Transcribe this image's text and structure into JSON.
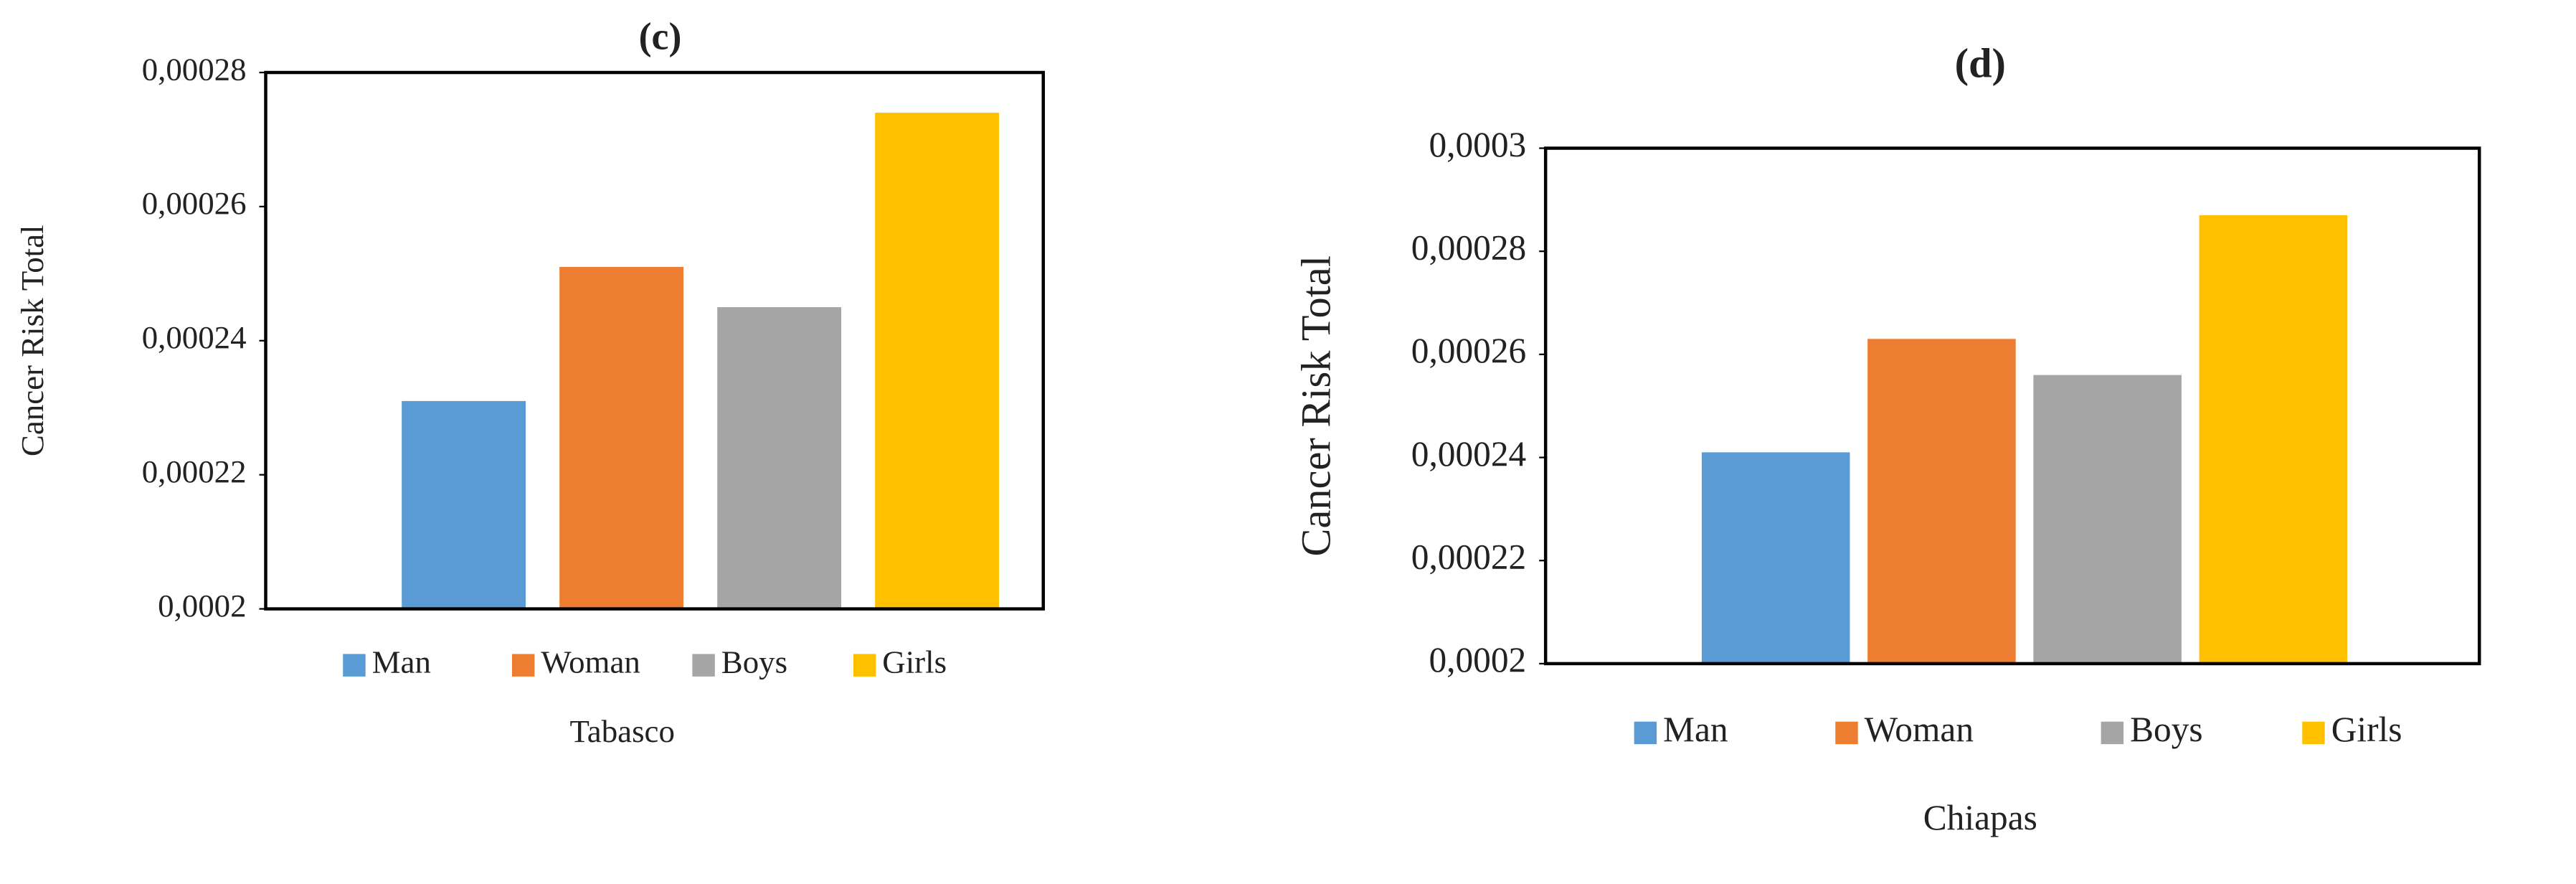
{
  "chart_data": [
    {
      "type": "bar",
      "title": "(c)",
      "y_label": "Cancer Risk Total",
      "x_label": "Tabasco",
      "categories": [
        "Man",
        "Woman",
        "Boys",
        "Girls"
      ],
      "values": [
        0.000231,
        0.000251,
        0.000245,
        0.000274
      ],
      "colors": [
        "#5b9bd5",
        "#ed7d31",
        "#a5a5a5",
        "#ffc000"
      ],
      "ylim": [
        0.0002,
        0.00028
      ],
      "yticks": [
        {
          "value": 0.0002,
          "label": "0,0002"
        },
        {
          "value": 0.00022,
          "label": "0,00022"
        },
        {
          "value": 0.00024,
          "label": "0,00024"
        },
        {
          "value": 0.00026,
          "label": "0,00026"
        },
        {
          "value": 0.00028,
          "label": "0,00028"
        }
      ],
      "legend": "bottom"
    },
    {
      "type": "bar",
      "title": "(d)",
      "y_label": "Cancer Risk  Total",
      "x_label": "Chiapas",
      "categories": [
        "Man",
        "Woman",
        "Boys",
        "Girls"
      ],
      "values": [
        0.000241,
        0.000263,
        0.000256,
        0.000287
      ],
      "colors": [
        "#5b9bd5",
        "#ed7d31",
        "#a5a5a5",
        "#ffc000"
      ],
      "ylim": [
        0.0002,
        0.0003
      ],
      "yticks": [
        {
          "value": 0.0002,
          "label": "0,0002"
        },
        {
          "value": 0.00022,
          "label": "0,00022"
        },
        {
          "value": 0.00024,
          "label": "0,00024"
        },
        {
          "value": 0.00026,
          "label": "0,00026"
        },
        {
          "value": 0.00028,
          "label": "0,00028"
        },
        {
          "value": 0.0003,
          "label": "0,0003"
        }
      ],
      "legend": "bottom"
    }
  ]
}
